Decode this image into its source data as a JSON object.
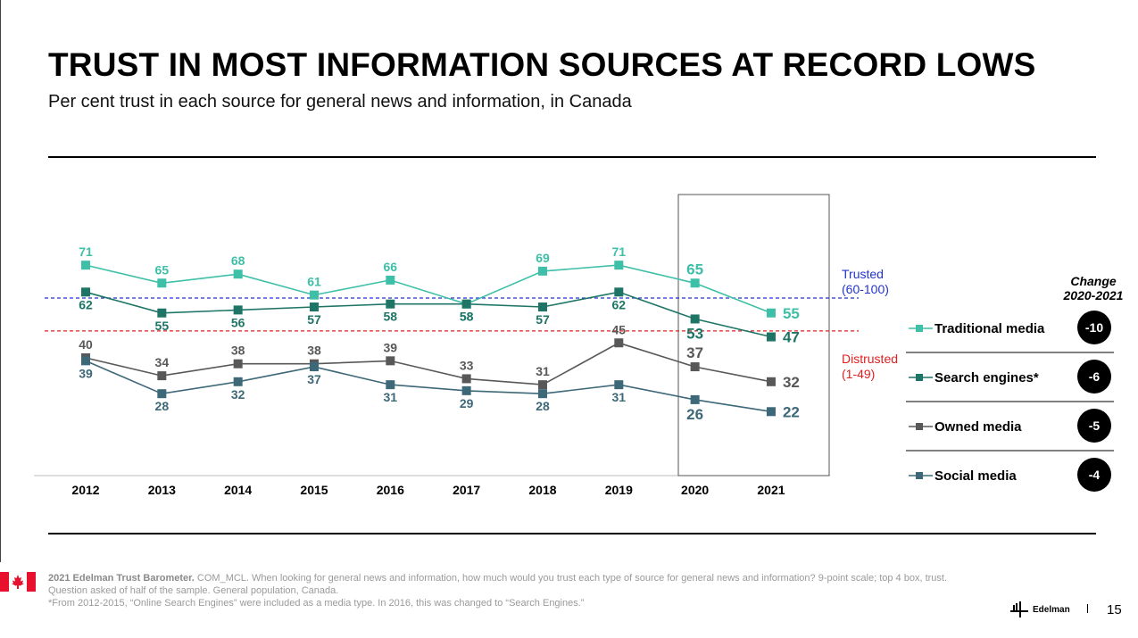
{
  "page": {
    "title": "TRUST IN MOST INFORMATION SOURCES AT RECORD LOWS",
    "subtitle": "Per cent trust in each source for general news and information, in Canada",
    "page_number": "15"
  },
  "chart_data": {
    "type": "line",
    "title": "TRUST IN MOST INFORMATION SOURCES AT RECORD LOWS",
    "subtitle": "Per cent trust in each source for general news and information, in Canada",
    "categories": [
      "2012",
      "2013",
      "2014",
      "2015",
      "2016",
      "2017",
      "2018",
      "2019",
      "2020",
      "2021"
    ],
    "ylim": [
      0,
      100
    ],
    "grid": false,
    "legend_placement": "right",
    "highlight_range": [
      "2020",
      "2021"
    ],
    "thresholds": [
      {
        "value": 60,
        "label": "Trusted",
        "range": "(60-100)",
        "color": "#2233cc"
      },
      {
        "value": 49,
        "label": "Distrusted",
        "range": "(1-49)",
        "color": "#e02020"
      }
    ],
    "series": [
      {
        "name": "Traditional media",
        "color": "#3dbfa8",
        "values": [
          71,
          65,
          68,
          61,
          66,
          58,
          69,
          71,
          65,
          55
        ],
        "change": "-10"
      },
      {
        "name": "Search engines*",
        "color": "#1e7566",
        "values": [
          62,
          55,
          56,
          57,
          58,
          58,
          57,
          62,
          53,
          47
        ],
        "change": "-6"
      },
      {
        "name": "Owned media",
        "color": "#585858",
        "values": [
          40,
          34,
          38,
          38,
          39,
          33,
          31,
          45,
          37,
          32
        ],
        "change": "-5"
      },
      {
        "name": "Social media",
        "color": "#3d6878",
        "values": [
          39,
          28,
          32,
          37,
          31,
          29,
          28,
          31,
          26,
          22
        ],
        "change": "-4"
      }
    ],
    "change_header": [
      "Change",
      "2020-2021"
    ]
  },
  "footer": {
    "source_bold": "2021 Edelman Trust Barometer.",
    "source_text": " COM_MCL. When looking for general news and information, how much would you trust each type of source for general news and information? 9-point scale; top 4 box, trust. Question asked of half of the sample. General population, Canada.",
    "note": "*From 2012-2015, “Online Search Engines” were included as a media type. In 2016, this was changed to “Search Engines.”"
  },
  "brand": {
    "name": "Edelman"
  },
  "colors": {
    "flag_red": "#e8112d"
  }
}
